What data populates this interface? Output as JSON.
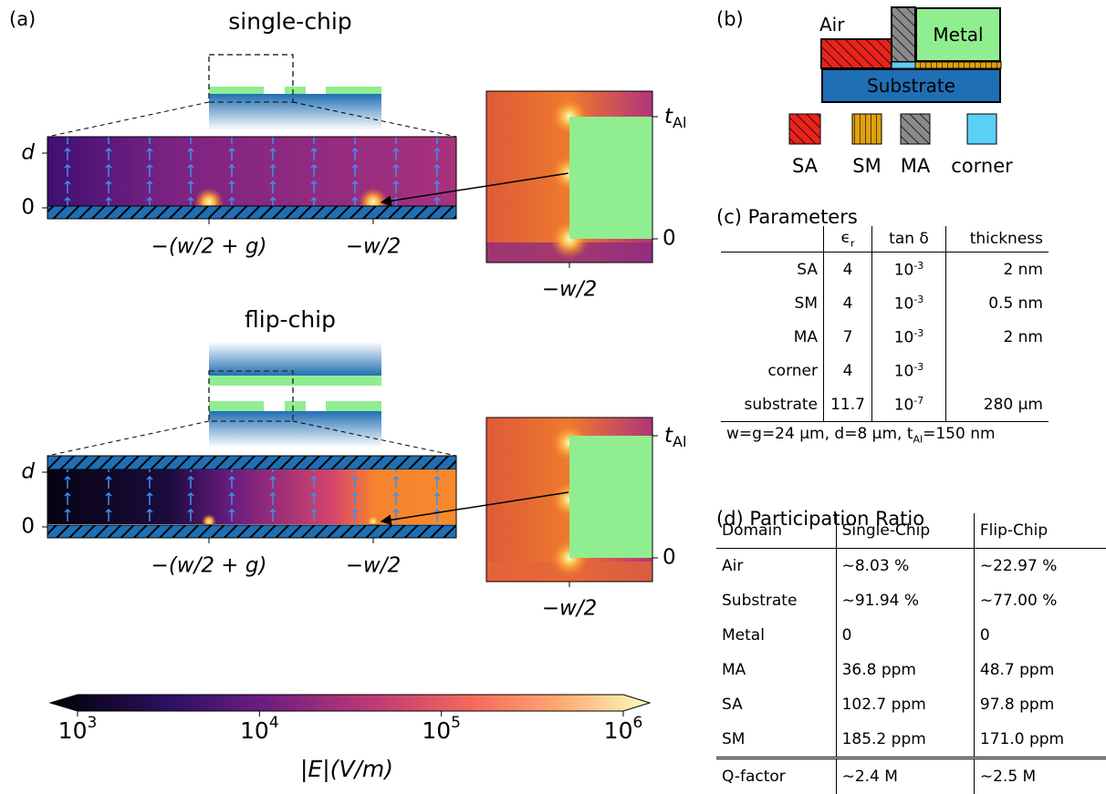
{
  "panel_a": {
    "label": "(a)",
    "single_chip": {
      "title": "single-chip",
      "y_labels": [
        "d",
        "0"
      ],
      "x_labels": [
        "−(w/2 + g)",
        "−w/2"
      ],
      "zoom": {
        "y_top": {
          "main": "t",
          "sub": "Al"
        },
        "y_bottom": "0",
        "x_label": "−w/2"
      }
    },
    "flip_chip": {
      "title": "flip-chip",
      "y_labels": [
        "d",
        "0"
      ],
      "x_labels": [
        "−(w/2 + g)",
        "−w/2"
      ],
      "zoom": {
        "y_top": {
          "main": "t",
          "sub": "Al"
        },
        "y_bottom": "0",
        "x_label": "−w/2"
      }
    },
    "colorbar": {
      "label": "|E|(V/m)",
      "scale": "log",
      "lim": [
        1000,
        1000000
      ],
      "ticks": [
        {
          "value": 1000,
          "label": "10",
          "exponent": "3"
        },
        {
          "value": 10000,
          "label": "10",
          "exponent": "4"
        },
        {
          "value": 100000,
          "label": "10",
          "exponent": "5"
        },
        {
          "value": 1000000,
          "label": "10",
          "exponent": "6"
        }
      ]
    }
  },
  "panel_b": {
    "label": "(b)",
    "air": "Air",
    "metal": "Metal",
    "substrate": "Substrate",
    "legend": [
      "SA",
      "SM",
      "MA",
      "corner"
    ]
  },
  "panel_c": {
    "title": "(c) Parameters",
    "header": [
      {
        "main": "ϵ",
        "sub": "r"
      },
      "tan δ",
      "thickness"
    ],
    "rows": [
      {
        "name": "SA",
        "eps": "4",
        "tan": {
          "base": "10",
          "exp": "-3"
        },
        "thickness": "2 nm"
      },
      {
        "name": "SM",
        "eps": "4",
        "tan": {
          "base": "10",
          "exp": "-3"
        },
        "thickness": "0.5 nm"
      },
      {
        "name": "MA",
        "eps": "7",
        "tan": {
          "base": "10",
          "exp": "-3"
        },
        "thickness": "2 nm"
      },
      {
        "name": "corner",
        "eps": "4",
        "tan": {
          "base": "10",
          "exp": "-3"
        }
      },
      {
        "name": "substrate",
        "eps": "11.7",
        "tan": {
          "base": "10",
          "exp": "-7"
        },
        "thickness": "280 μm"
      }
    ],
    "note": {
      "before": "w=g=24 μm, d=8 μm, t",
      "sub": "Al",
      "after": "=150 nm"
    }
  },
  "panel_d": {
    "title": "(d) Participation Ratio",
    "header": [
      "Domain",
      "Single-Chip",
      "Flip-Chip"
    ],
    "rows": [
      [
        "Air",
        "∼8.03 %",
        "∼22.97 %"
      ],
      [
        "Substrate",
        "∼91.94 %",
        "∼77.00 %"
      ],
      [
        "Metal",
        "0",
        "0"
      ],
      [
        "MA",
        "36.8 ppm",
        "48.7 ppm"
      ],
      [
        "SA",
        "102.7 ppm",
        "97.8 ppm"
      ],
      [
        "SM",
        "185.2 ppm",
        "171.0 ppm"
      ]
    ],
    "q_row": [
      "Q-factor",
      "∼2.4 M",
      "∼2.5 M"
    ]
  }
}
